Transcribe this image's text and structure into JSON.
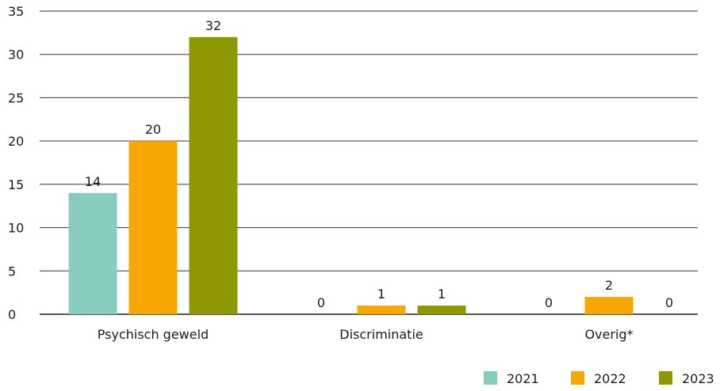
{
  "chart_data": {
    "type": "bar",
    "title": "",
    "xlabel": "",
    "ylabel": "",
    "categories": [
      "Psychisch geweld",
      "Discriminatie",
      "Overig*"
    ],
    "series": [
      {
        "name": "2021",
        "color": "#88ccc0",
        "values": [
          14,
          0,
          0
        ]
      },
      {
        "name": "2022",
        "color": "#f7a800",
        "values": [
          20,
          1,
          2
        ]
      },
      {
        "name": "2023",
        "color": "#8f9800",
        "values": [
          32,
          1,
          0
        ]
      }
    ],
    "ylim": [
      0,
      35
    ],
    "yticks": [
      0,
      5,
      10,
      15,
      20,
      25,
      30,
      35
    ],
    "grid": true,
    "legend": "bottom-right"
  }
}
